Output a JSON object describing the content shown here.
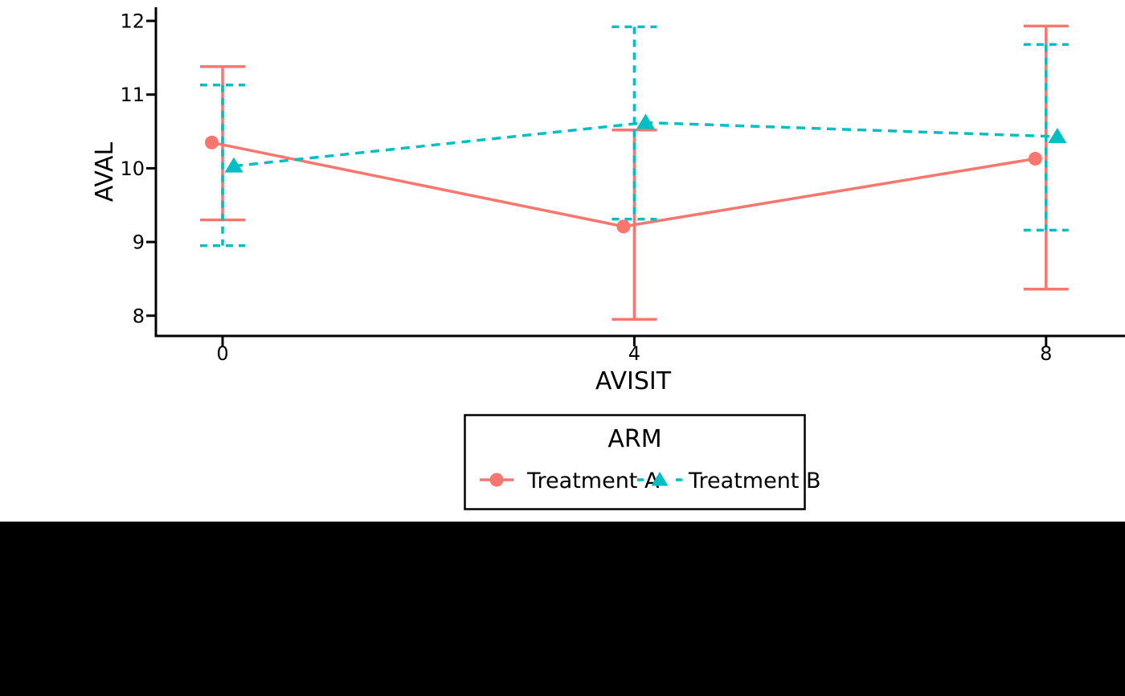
{
  "canvas": {
    "background_color": "#FFFFFF",
    "bottom_band_color": "#000000",
    "axis_color": "#000000"
  },
  "chart_data": {
    "type": "line",
    "title": "",
    "xlabel": "AVISIT",
    "ylabel": "AVAL",
    "xticks": [
      0,
      4,
      8
    ],
    "yticks": [
      8,
      9,
      10,
      11,
      12
    ],
    "xlim": [
      -0.65,
      8.77
    ],
    "ylim": [
      7.9,
      12.2
    ],
    "grid": false,
    "legend": {
      "title": "ARM",
      "position": "bottom",
      "orientation": "horizontal",
      "border_color": "#000000",
      "background_color": "#FFFFFF"
    },
    "x": [
      0,
      4,
      8
    ],
    "series": [
      {
        "name": "Treatment A",
        "color": "#F8766D",
        "marker": "circle",
        "linestyle": "solid",
        "means": [
          10.35,
          9.21,
          10.13
        ],
        "ci_lower": [
          9.3,
          7.95,
          8.36
        ],
        "ci_upper": [
          11.38,
          10.52,
          11.93
        ]
      },
      {
        "name": "Treatment B",
        "color": "#00BFC4",
        "marker": "triangle",
        "linestyle": "dashed",
        "means": [
          10.03,
          10.62,
          10.43
        ],
        "ci_lower": [
          8.95,
          9.31,
          9.16
        ],
        "ci_upper": [
          11.13,
          11.92,
          11.68
        ]
      }
    ]
  }
}
